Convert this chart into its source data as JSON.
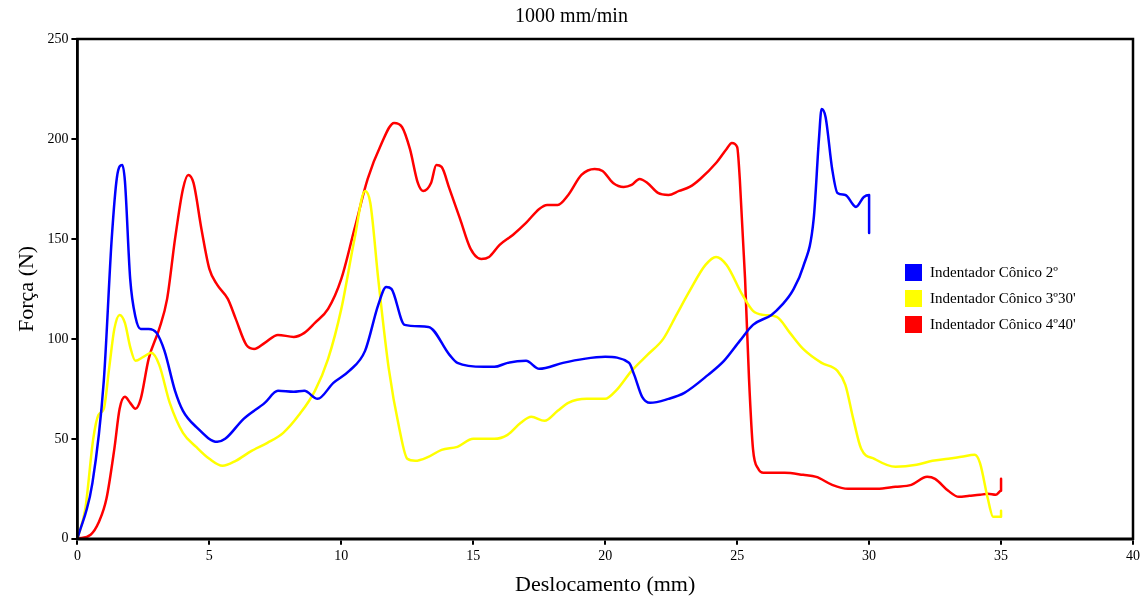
{
  "chart_data": {
    "type": "line",
    "title": "1000 mm/min",
    "xlabel": "Deslocamento (mm)",
    "ylabel": "Força (N)",
    "xlim": [
      0,
      40
    ],
    "xticks": [
      0,
      5,
      10,
      15,
      20,
      25,
      30,
      35,
      40
    ],
    "ylim": [
      0,
      250
    ],
    "yticks": [
      0,
      50,
      100,
      150,
      200,
      250
    ],
    "grid": false,
    "legend": "right",
    "marker": "none",
    "line_style": "solid",
    "series": [
      {
        "name": "Indentador Cônico 2º",
        "color": "#0000ff",
        "x": [
          0,
          0.57,
          1,
          1.3,
          1.5,
          1.7,
          1.8,
          2.0,
          2.2,
          2.4,
          2.7,
          3.0,
          3.3,
          3.7,
          4.0,
          4.5,
          5.3,
          5.6,
          6.3,
          7.1,
          7.6,
          8.2,
          8.6,
          9.1,
          9.7,
          10.3,
          10.9,
          11.4,
          11.7,
          11.9,
          12.4,
          13.3,
          14.1,
          14.4,
          15.4,
          15.8,
          16.3,
          17.0,
          17.5,
          18.4,
          19.2,
          20.0,
          20.9,
          21.1,
          21.4,
          21.7,
          22.4,
          23.0,
          23.9,
          24.5,
          25.1,
          25.6,
          26.3,
          26.7,
          27.1,
          27.5,
          27.9,
          28.1,
          28.2,
          28.35,
          28.6,
          28.8,
          29.1,
          29.4,
          29.5,
          29.8,
          30.0,
          30.0
        ],
        "values": [
          0,
          28,
          79,
          150,
          181,
          187,
          179,
          130,
          111,
          105,
          105,
          103,
          94,
          74,
          64,
          56,
          48.5,
          50,
          60,
          68,
          74,
          73.5,
          74,
          70,
          78,
          84,
          94,
          117,
          126,
          125,
          107,
          106,
          92,
          88,
          86,
          86,
          88,
          89,
          85,
          88,
          90,
          91,
          88,
          82,
          71,
          68,
          70,
          73,
          82,
          89,
          99,
          107,
          112,
          117,
          124,
          136,
          160,
          200,
          215,
          211,
          185,
          173,
          172,
          167,
          166,
          171,
          172,
          153
        ]
      },
      {
        "name": "Indentador Cônico 3º30'",
        "color": "#ffff00",
        "x": [
          0,
          0.3,
          0.6,
          0.8,
          1.0,
          1.2,
          1.4,
          1.6,
          1.8,
          2.0,
          2.2,
          2.5,
          2.8,
          3.1,
          3.5,
          4.0,
          4.5,
          5.0,
          5.5,
          6.0,
          6.6,
          7.2,
          7.8,
          8.4,
          9.0,
          9.5,
          10.0,
          10.5,
          10.9,
          11.1,
          11.4,
          11.8,
          12.2,
          12.5,
          12.8,
          13.3,
          13.8,
          14.4,
          15.0,
          15.8,
          16.3,
          16.8,
          17.2,
          17.7,
          18.2,
          18.6,
          19.3,
          20.0,
          20.4,
          21.0,
          21.6,
          22.2,
          22.7,
          23.2,
          23.8,
          24.2,
          24.6,
          25.2,
          25.6,
          26.0,
          26.5,
          27.0,
          27.5,
          28.2,
          28.8,
          29.1,
          29.4,
          29.7,
          30.2,
          31.0,
          31.8,
          32.4,
          33.0,
          33.5,
          34.0,
          34.2,
          34.5,
          34.7,
          35.0,
          35.0
        ],
        "values": [
          0,
          15,
          50,
          62,
          65,
          85,
          105,
          112,
          108,
          96,
          89,
          91,
          93,
          87,
          68,
          53,
          46,
          40,
          36.5,
          39,
          44,
          48,
          53,
          62,
          74,
          90,
          115,
          150,
          174,
          168,
          130,
          85,
          55,
          40,
          39,
          41,
          44.5,
          46,
          50,
          50,
          52,
          58,
          61,
          59,
          64,
          68,
          70,
          70,
          74,
          84,
          92,
          100,
          112,
          124,
          137,
          141,
          137,
          122,
          114,
          112,
          111,
          103,
          95,
          88,
          84,
          77,
          60,
          45,
          40,
          36,
          37,
          39,
          40,
          41,
          42,
          38,
          20,
          11,
          11,
          14
        ]
      },
      {
        "name": "Indentador Cônico 4º40'",
        "color": "#ff0000",
        "x": [
          0,
          0.5,
          0.8,
          1.1,
          1.4,
          1.6,
          1.8,
          2.0,
          2.2,
          2.4,
          2.7,
          3.1,
          3.4,
          3.7,
          4.0,
          4.2,
          4.4,
          4.7,
          5.0,
          5.3,
          5.7,
          6.0,
          6.4,
          6.7,
          7.1,
          7.6,
          8.2,
          8.6,
          9.0,
          9.5,
          10.0,
          10.5,
          11.0,
          11.5,
          12.0,
          12.3,
          12.6,
          12.9,
          13.1,
          13.4,
          13.6,
          13.8,
          14.1,
          14.5,
          14.9,
          15.3,
          15.6,
          16.0,
          16.5,
          17.0,
          17.5,
          17.8,
          18.2,
          18.6,
          19.1,
          19.6,
          19.9,
          20.3,
          20.7,
          21.0,
          21.3,
          21.6,
          22.0,
          22.4,
          22.8,
          23.2,
          23.6,
          24.2,
          24.6,
          24.8,
          25.0,
          25.1,
          25.3,
          25.45,
          25.6,
          25.8,
          26.0,
          26.8,
          27.5,
          28.0,
          28.6,
          29.2,
          29.8,
          30.3,
          31.0,
          31.6,
          32.2,
          32.5,
          33.0,
          33.4,
          33.8,
          34.2,
          34.5,
          34.8,
          35.0,
          35.0
        ],
        "values": [
          0,
          2,
          8,
          20,
          45,
          65,
          71,
          68,
          65,
          70,
          90,
          105,
          120,
          150,
          175,
          182,
          178,
          155,
          135,
          127,
          120,
          110,
          97,
          95,
          98,
          102,
          101,
          103,
          108,
          115,
          130,
          155,
          180,
          197,
          208,
          206,
          195,
          178,
          174,
          178,
          187,
          186,
          175,
          160,
          145,
          140,
          141,
          147,
          152,
          158,
          165,
          167,
          167,
          172,
          182,
          185,
          184,
          178,
          176,
          177,
          180,
          178,
          173,
          172,
          174,
          176,
          180,
          188,
          195,
          198,
          196,
          180,
          130,
          80,
          45,
          35,
          33,
          33,
          32,
          31,
          27,
          25,
          25,
          25,
          26,
          27,
          31,
          30,
          24,
          21,
          21.5,
          22,
          22.5,
          22,
          24,
          30
        ]
      }
    ]
  }
}
